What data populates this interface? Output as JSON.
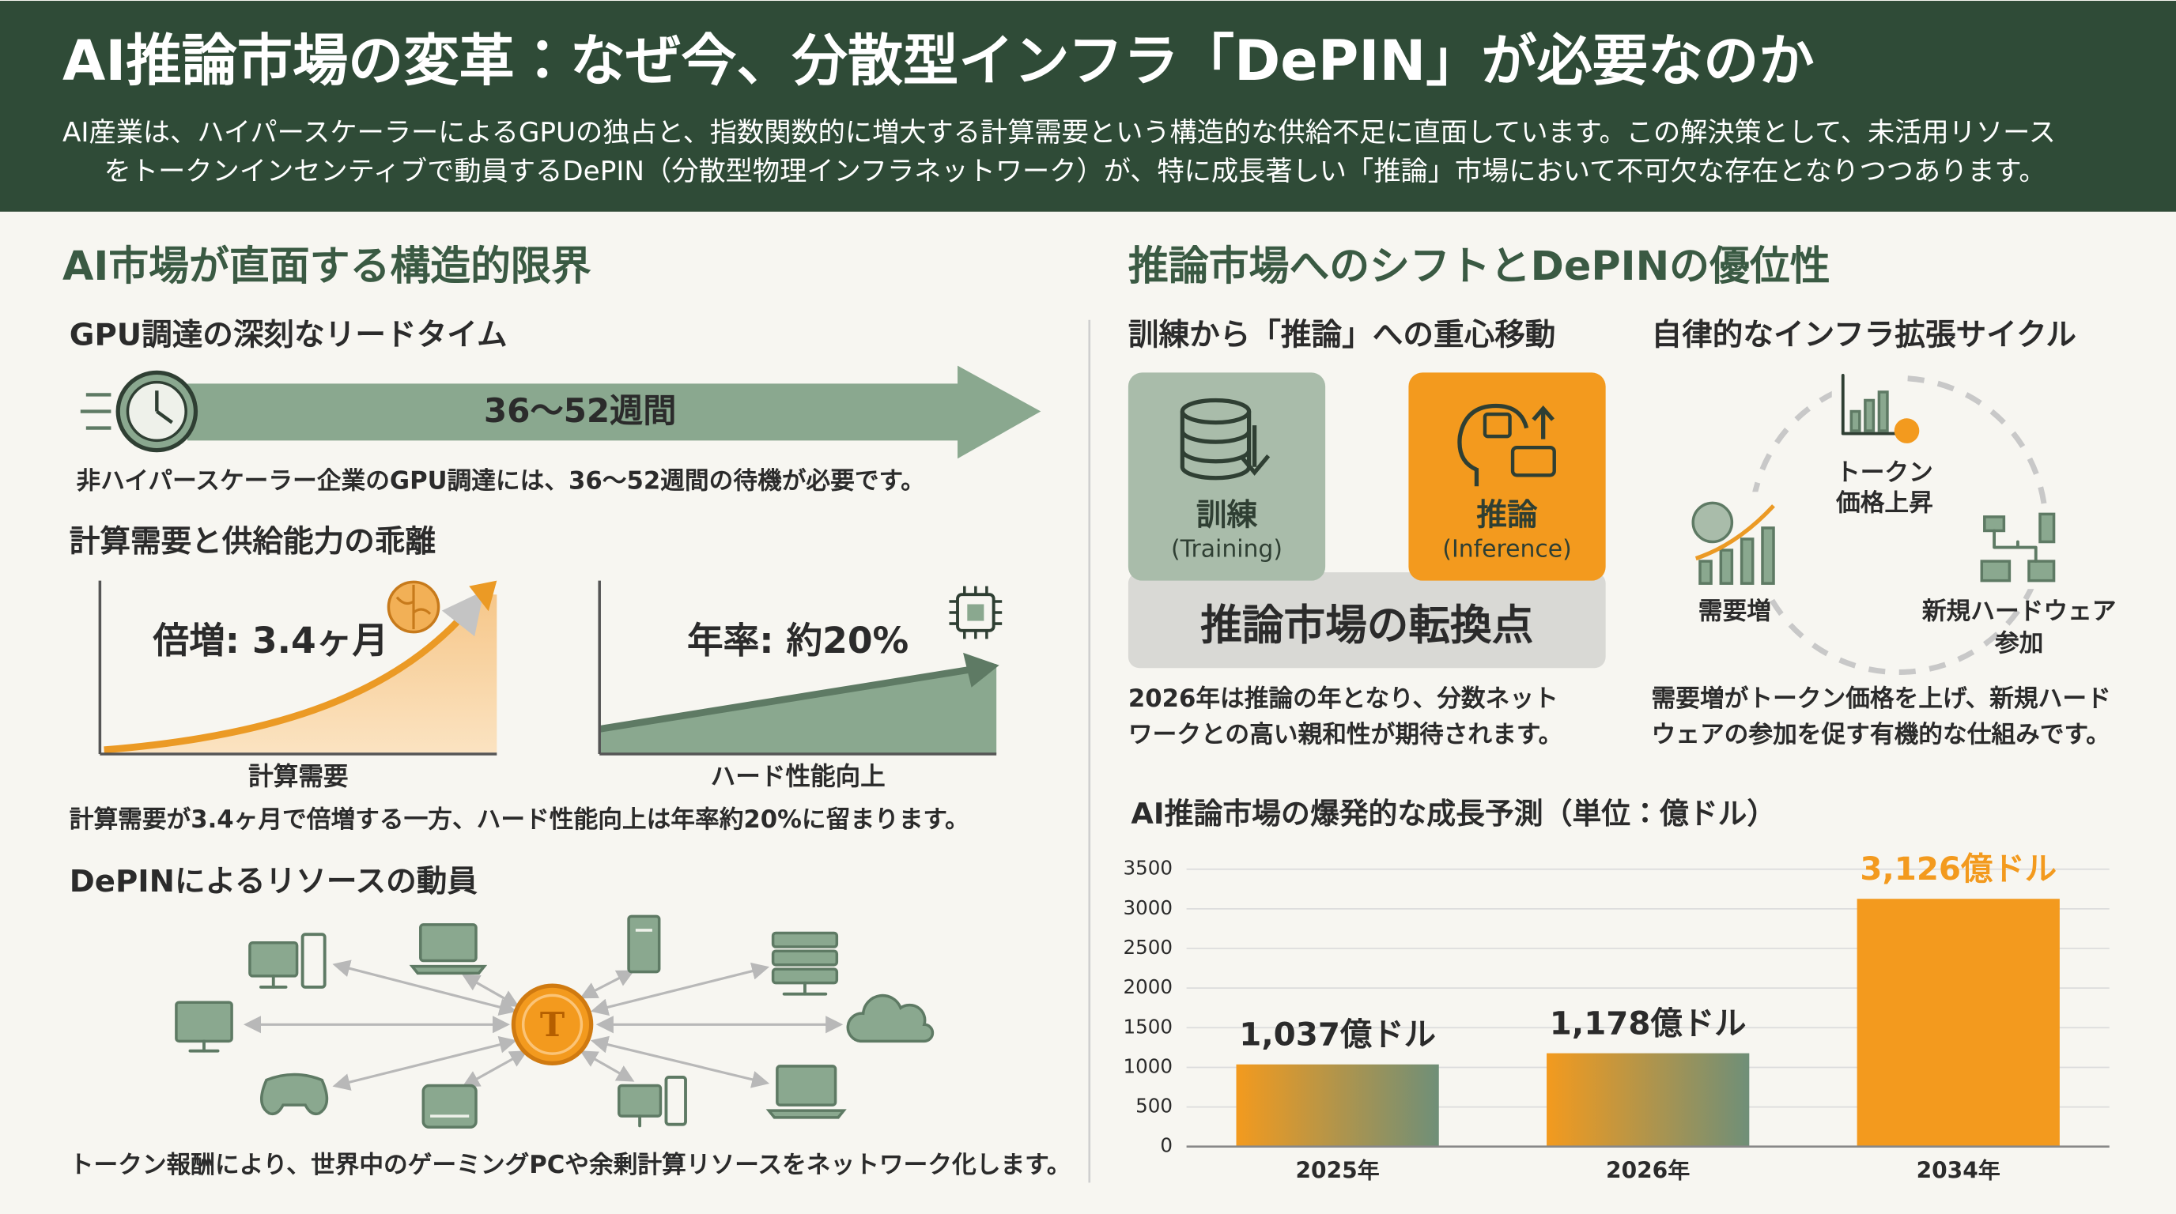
{
  "header": {
    "title": "AI推論市場の変革：なぜ今、分散型インフラ「DePIN」が必要なのか",
    "subtitle_lines": [
      "AI産業は、ハイパースケーラーによるGPUの独占と、指数関数的に増大する計算需要という構造的な供給不足に直面しています。この解決策として、未活用リソース",
      "をトークンインセンティブで動員するDePIN（分散型物理インフラネットワーク）が、特に成長著しい「推論」市場において不可欠な存在となりつつあります。"
    ]
  },
  "left": {
    "heading": "AI市場が直面する構造的限界",
    "lead_time": {
      "title": "GPU調達の深刻なリードタイム",
      "arrow_label": "36〜52週間",
      "caption": "非ハイパースケーラー企業のGPU調達には、36〜52週間の待機が必要です。"
    },
    "gap": {
      "title": "計算需要と供給能力の乖離",
      "demand": {
        "label": "倍増: 3.4ヶ月",
        "axis_label": "計算需要"
      },
      "supply": {
        "label": "年率: 約20%",
        "axis_label": "ハード性能向上"
      },
      "caption": "計算需要が3.4ヶ月で倍増する一方、ハード性能向上は年率約20%に留まります。"
    },
    "depin": {
      "title": "DePINによるリソースの動員",
      "coin_symbol": "T",
      "caption": "トークン報酬により、世界中のゲーミングPCや余剰計算リソースをネットワーク化します。"
    }
  },
  "right": {
    "heading": "推論市場へのシフトとDePINの優位性",
    "shift": {
      "title": "訓練から「推論」への重心移動",
      "training": {
        "label": "訓練",
        "sub": "(Training)"
      },
      "inference": {
        "label": "推論",
        "sub": "(Inference)"
      },
      "turning_point": "推論市場の転換点",
      "caption_lines": [
        "2026年は推論の年となり、分数ネット",
        "ワークとの高い親和性が期待されます。"
      ]
    },
    "cycle": {
      "title": "自律的なインフラ拡張サイクル",
      "token_lines": [
        "トークン",
        "価格上昇"
      ],
      "demand": "需要増",
      "hardware_lines": [
        "新規ハードウェア",
        "参加"
      ],
      "caption_lines": [
        "需要増がトークン価格を上げ、新規ハード",
        "ウェアの参加を促す有機的な仕組みです。"
      ]
    }
  },
  "chart_data": {
    "type": "bar",
    "title": "AI推論市場の爆発的な成長予測（単位：億ドル）",
    "categories": [
      "2025年",
      "2026年",
      "2034年"
    ],
    "values": [
      1037,
      1178,
      3126
    ],
    "value_labels": [
      "1,037億ドル",
      "1,178億ドル",
      "3,126億ドル"
    ],
    "bar_colors": [
      [
        "#f39a1e",
        "#6f8f78"
      ],
      [
        "#f39a1e",
        "#6f8f78"
      ],
      [
        "#f39a1e"
      ]
    ],
    "value_label_colors": [
      "#2b2b2b",
      "#2b2b2b",
      "#f39a1e"
    ],
    "ylim": [
      0,
      3500
    ],
    "yticks": [
      0,
      500,
      1000,
      1500,
      2000,
      2500,
      3000,
      3500
    ],
    "grid": true
  }
}
